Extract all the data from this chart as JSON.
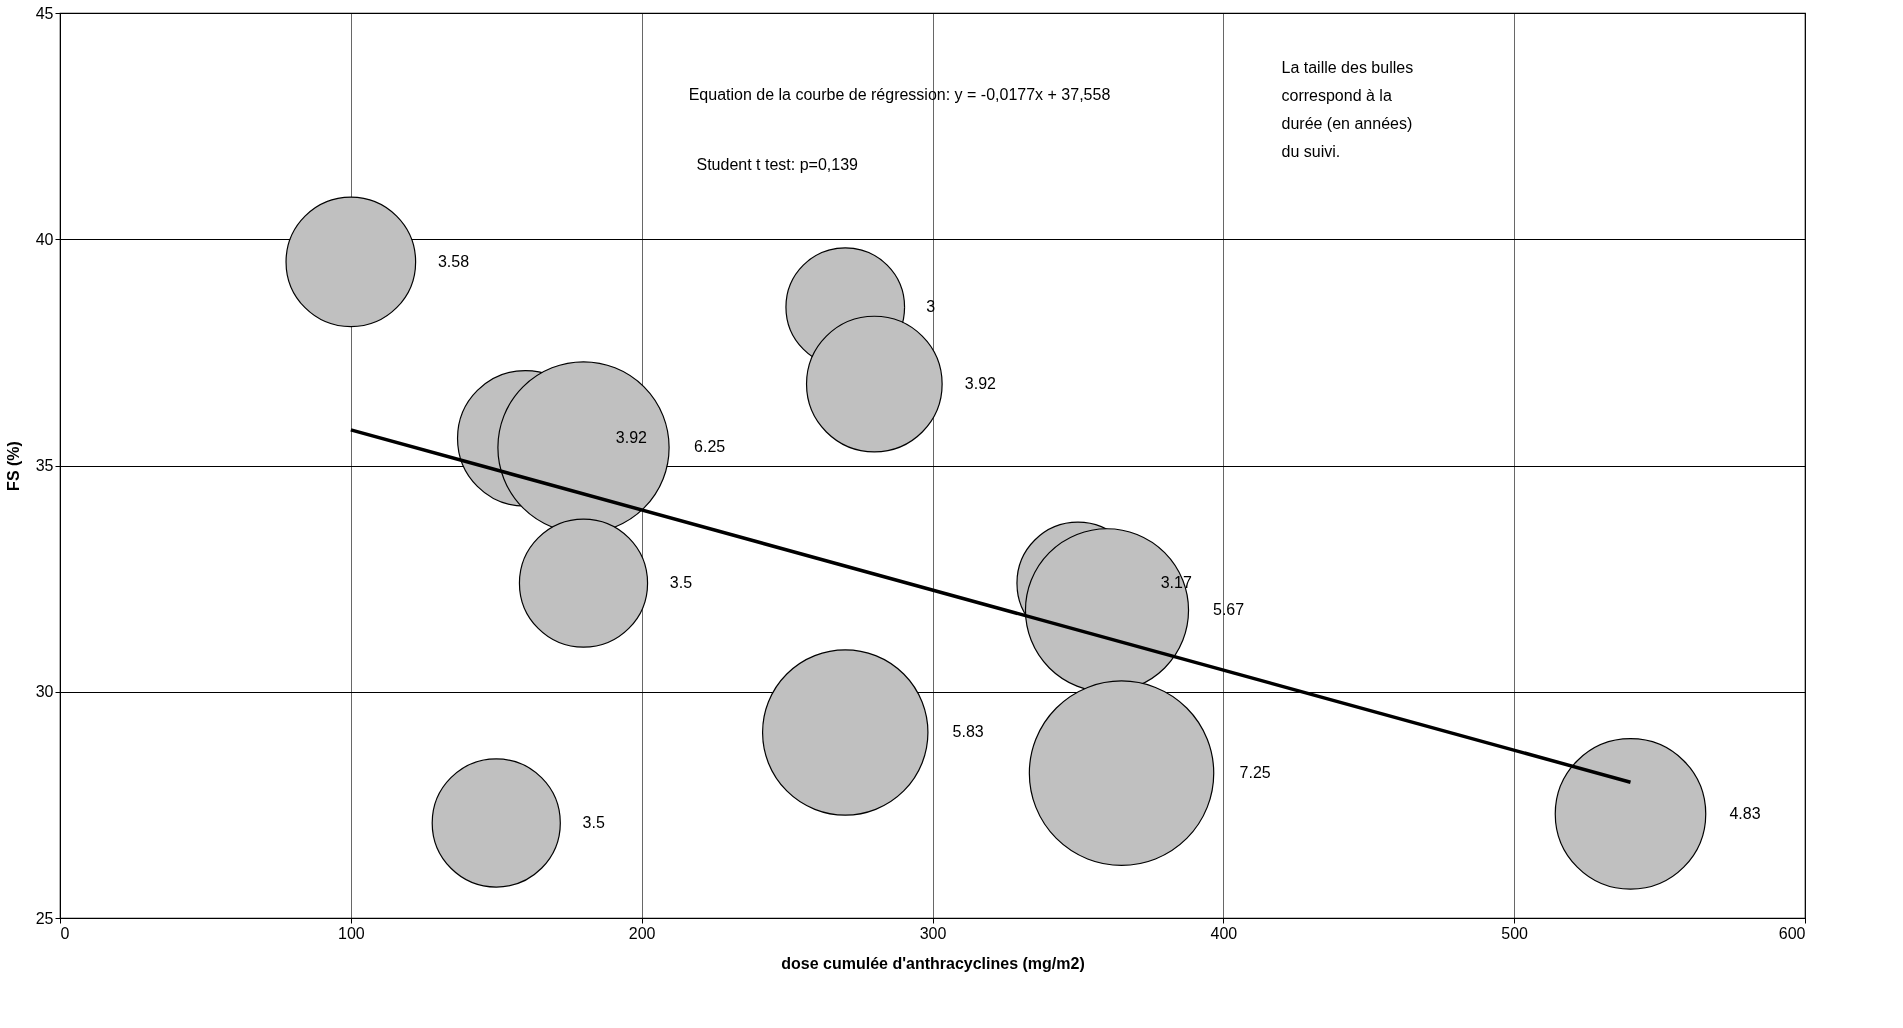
{
  "chart_data": {
    "type": "bubble",
    "xlabel": "dose cumulée d'anthracyclines (mg/m2)",
    "ylabel": "FS (%)",
    "xlim": [
      0,
      600
    ],
    "xticks": [
      0,
      100,
      200,
      300,
      400,
      500,
      600
    ],
    "ylim": [
      25,
      45
    ],
    "yticks": [
      25,
      30,
      35,
      40,
      45
    ],
    "grid": true,
    "annotations": [
      "Equation de la courbe de régression: y = -0,0177x + 37,558",
      "Student t test: p=0,139",
      "La taille des bulles\ncorrespond à la\ndurée (en années)\ndu suivi."
    ],
    "series": [
      {
        "color": "#c0c0c0",
        "x": [
          100,
          150,
          160,
          180,
          180,
          270,
          280,
          270,
          350,
          360,
          365,
          540
        ],
        "values": [
          39.5,
          27.1,
          35.6,
          35.4,
          32.4,
          38.5,
          36.8,
          29.1,
          32.4,
          31.8,
          28.2,
          27.3
        ],
        "sizes": [
          3.58,
          3.5,
          3.92,
          6.25,
          3.5,
          3,
          3.92,
          5.83,
          3.17,
          5.67,
          7.25,
          4.83
        ],
        "value_labels": [
          "3.58",
          "3.5",
          "3.92",
          "6.25",
          "3.5",
          "3",
          "3.92",
          "5.83",
          "3.17",
          "5.67",
          "7.25",
          "4.83"
        ]
      },
      {
        "type": "line",
        "color": "#000000",
        "x": [
          100,
          540
        ],
        "values": [
          35.788,
          28.0
        ]
      }
    ]
  }
}
